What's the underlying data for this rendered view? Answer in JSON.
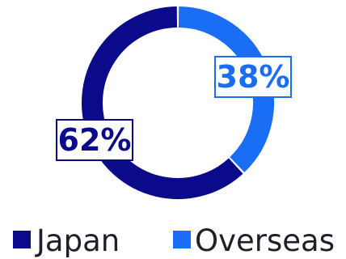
{
  "chart_data": {
    "type": "pie",
    "variant": "donut",
    "slices": [
      {
        "name": "Japan",
        "value": 62,
        "label": "62%",
        "color": "#0a0a8a"
      },
      {
        "name": "Overseas",
        "value": 38,
        "label": "38%",
        "color": "#1a6ef5"
      }
    ],
    "legend": {
      "placement": "bottom",
      "items": [
        "Japan",
        "Overseas"
      ]
    }
  }
}
